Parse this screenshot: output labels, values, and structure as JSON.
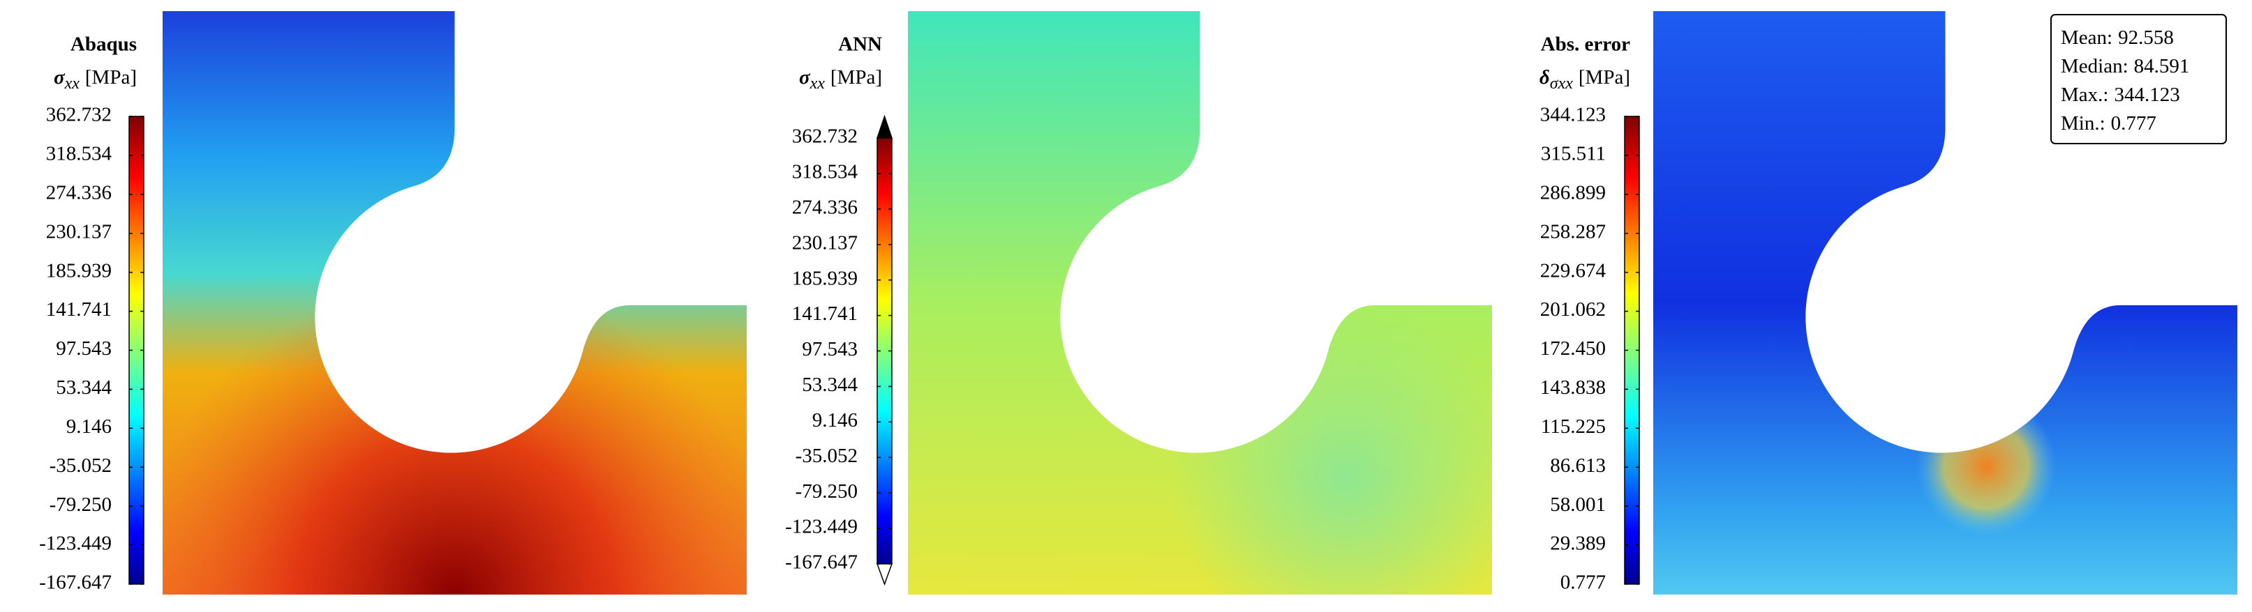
{
  "chart_data": [
    {
      "type": "contour",
      "title": "Abaqus",
      "colorbar_label": {
        "symbol": "σ",
        "subscript": "xx",
        "unit": "[MPa]"
      },
      "colormap": "jet",
      "extend": "neither",
      "clim": [
        -167.647,
        362.732
      ],
      "ticks": [
        362.732,
        318.534,
        274.336,
        230.137,
        185.939,
        141.741,
        97.543,
        53.344,
        9.146,
        -35.052,
        {
          "value": -79.25,
          "label": "-79.250"
        },
        -123.449,
        -167.647
      ]
    },
    {
      "type": "contour",
      "title": "ANN",
      "colorbar_label": {
        "symbol": "σ",
        "subscript": "xx",
        "unit": "[MPa]"
      },
      "colormap": "jet",
      "extend": "both",
      "clim": [
        -167.647,
        362.732
      ],
      "ticks": [
        362.732,
        318.534,
        274.336,
        230.137,
        185.939,
        141.741,
        97.543,
        53.344,
        9.146,
        -35.052,
        {
          "value": -79.25,
          "label": "-79.250"
        },
        -123.449,
        -167.647
      ]
    },
    {
      "type": "contour",
      "title": "Abs. error",
      "colorbar_label": {
        "symbol": "δ",
        "subscript": "σxx",
        "unit": "[MPa]"
      },
      "colormap": "jet",
      "extend": "neither",
      "clim": [
        0.777,
        344.123
      ],
      "ticks": [
        344.123,
        315.511,
        286.899,
        258.287,
        229.674,
        201.062,
        {
          "value": 172.45,
          "label": "172.450"
        },
        143.838,
        115.225,
        86.613,
        58.001,
        29.389,
        0.777
      ],
      "stats": [
        {
          "label": "Mean:",
          "value": 92.558
        },
        {
          "label": "Median:",
          "value": 84.591
        },
        {
          "label": "Max.:",
          "value": 344.123
        },
        {
          "label": "Min.:",
          "value": 0.777
        }
      ]
    }
  ]
}
